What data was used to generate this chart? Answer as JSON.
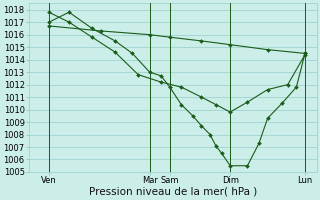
{
  "background_color": "#cceee8",
  "grid_color": "#99cccc",
  "line_color": "#1a5c1a",
  "marker_color": "#1a5c1a",
  "xlabel": "Pression niveau de la mer( hPa )",
  "ylim": [
    1005,
    1018.5
  ],
  "ylabel_min": 1005,
  "ylabel_max": 1018,
  "xlabel_fontsize": 7.5,
  "tick_fontsize": 6,
  "xlim": [
    0,
    1
  ],
  "xtick_positions": [
    0.07,
    0.42,
    0.49,
    0.7,
    0.96
  ],
  "xtick_labels": [
    "Ven",
    "Mar",
    "Sam",
    "Dim",
    "Lun"
  ],
  "vline_positions": [
    0.07,
    0.42,
    0.49,
    0.7,
    0.96
  ],
  "series1": {
    "x": [
      0.07,
      0.25,
      0.42,
      0.49,
      0.6,
      0.7,
      0.83,
      0.96
    ],
    "y": [
      1016.7,
      1016.3,
      1016.0,
      1015.8,
      1015.5,
      1015.2,
      1014.8,
      1014.5
    ]
  },
  "series2": {
    "x": [
      0.07,
      0.14,
      0.22,
      0.3,
      0.38,
      0.46,
      0.53,
      0.6,
      0.65,
      0.7,
      0.76,
      0.83,
      0.9,
      0.96
    ],
    "y": [
      1017.8,
      1017.0,
      1015.8,
      1014.6,
      1012.8,
      1012.2,
      1011.8,
      1011.0,
      1010.4,
      1009.8,
      1010.6,
      1011.6,
      1012.0,
      1014.4
    ]
  },
  "series3": {
    "x": [
      0.07,
      0.14,
      0.22,
      0.3,
      0.36,
      0.42,
      0.46,
      0.49,
      0.53,
      0.57,
      0.6,
      0.63,
      0.65,
      0.67,
      0.7,
      0.76,
      0.8,
      0.83,
      0.88,
      0.93,
      0.96
    ],
    "y": [
      1017.0,
      1017.8,
      1016.5,
      1015.5,
      1014.5,
      1013.0,
      1012.7,
      1011.8,
      1010.4,
      1009.5,
      1008.7,
      1008.0,
      1007.1,
      1006.5,
      1005.5,
      1005.5,
      1007.3,
      1009.3,
      1010.5,
      1011.8,
      1014.5
    ]
  }
}
